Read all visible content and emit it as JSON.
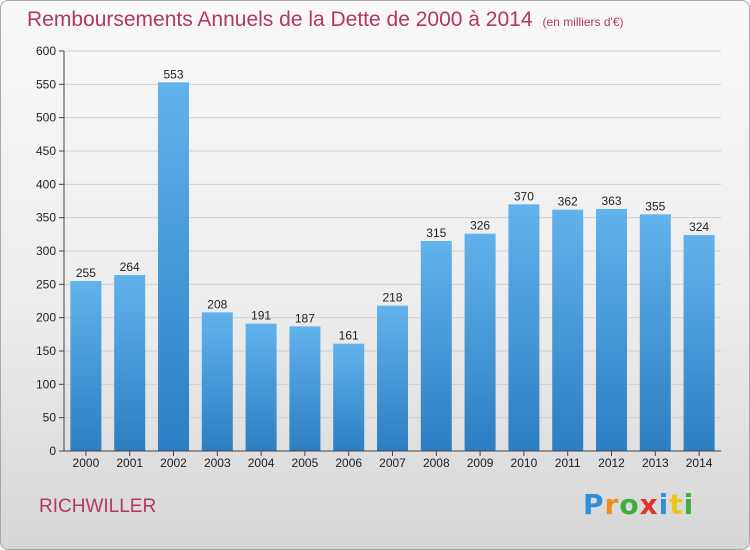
{
  "title": "Remboursements Annuels de la Dette de 2000 à 2014",
  "unit": "(en milliers d'€)",
  "commune": "RICHWILLER",
  "logo": {
    "text": "Proxiti",
    "letters": [
      {
        "char": "P",
        "color": "#2e8fd8"
      },
      {
        "char": "r",
        "color": "#f08a1e"
      },
      {
        "char": "o",
        "color": "#3fae3f"
      },
      {
        "char": "x",
        "color": "#e2332b"
      },
      {
        "char": "i",
        "color": "#2e8fd8"
      },
      {
        "char": "t",
        "color": "#f0c419"
      },
      {
        "char": "i",
        "color": "#3fae3f"
      }
    ]
  },
  "chart_data": {
    "type": "bar",
    "categories": [
      "2000",
      "2001",
      "2002",
      "2003",
      "2004",
      "2005",
      "2006",
      "2007",
      "2008",
      "2009",
      "2010",
      "2011",
      "2012",
      "2013",
      "2014"
    ],
    "values": [
      255,
      264,
      553,
      208,
      191,
      187,
      161,
      218,
      315,
      326,
      370,
      362,
      363,
      355,
      324
    ],
    "ylim": [
      0,
      600
    ],
    "yticks": [
      0,
      50,
      100,
      150,
      200,
      250,
      300,
      350,
      400,
      450,
      500,
      550,
      600
    ],
    "grid": true,
    "colors": {
      "bar_light": "#62b2ec",
      "bar_dark": "#2c7ec2",
      "grid": "#d0d0d0",
      "axis": "#444444"
    }
  }
}
